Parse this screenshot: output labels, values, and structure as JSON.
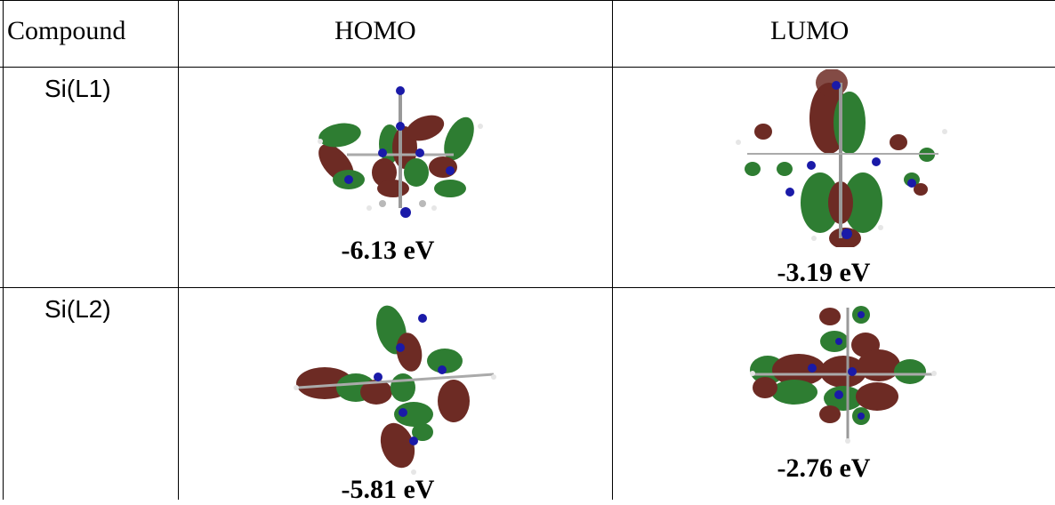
{
  "table": {
    "headers": {
      "compound": "Compound",
      "homo": "HOMO",
      "lumo": "LUMO"
    },
    "rows": [
      {
        "compound": "Si(L1)",
        "homo_energy": "-6.13 eV",
        "lumo_energy": "-3.19 eV"
      },
      {
        "compound": "Si(L2)",
        "homo_energy": "-5.81 eV",
        "lumo_energy": "-2.76 eV"
      }
    ]
  },
  "colors": {
    "lobe_positive": "#2e7d32",
    "lobe_negative": "#6d2b24",
    "atom_n": "#1a1aa8",
    "atom_c": "#b9b9b9",
    "atom_h": "#e6e6e6"
  },
  "icons": [
    "homo-orbital-si-l1",
    "lumo-orbital-si-l1",
    "homo-orbital-si-l2",
    "lumo-orbital-si-l2"
  ]
}
